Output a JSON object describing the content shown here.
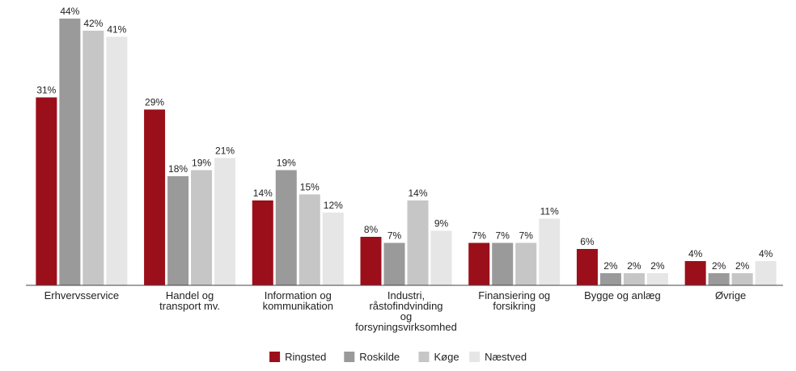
{
  "chart_data": {
    "type": "bar",
    "title": "",
    "xlabel": "",
    "ylabel": "",
    "ylim": [
      0,
      45
    ],
    "grid": false,
    "legend_position": "bottom",
    "categories": [
      [
        "Erhvervsservice"
      ],
      [
        "Handel og",
        "transport mv."
      ],
      [
        "Information og",
        "kommunikation"
      ],
      [
        "Industri,",
        "råstofindvinding",
        "og",
        "forsyningsvirksomhed"
      ],
      [
        "Finansiering og",
        "forsikring"
      ],
      [
        "Bygge og anlæg"
      ],
      [
        "Øvrige"
      ]
    ],
    "series": [
      {
        "name": "Ringsted",
        "color": "#9b0f1a",
        "values": [
          31,
          29,
          14,
          8,
          7,
          6,
          4
        ]
      },
      {
        "name": "Roskilde",
        "color": "#9a9a9a",
        "values": [
          44,
          18,
          19,
          7,
          7,
          2,
          2
        ]
      },
      {
        "name": "Køge",
        "color": "#c6c6c6",
        "values": [
          42,
          19,
          15,
          14,
          7,
          2,
          2
        ]
      },
      {
        "name": "Næstved",
        "color": "#e6e6e6",
        "values": [
          41,
          21,
          12,
          9,
          11,
          2,
          4
        ]
      }
    ],
    "value_suffix": "%"
  }
}
